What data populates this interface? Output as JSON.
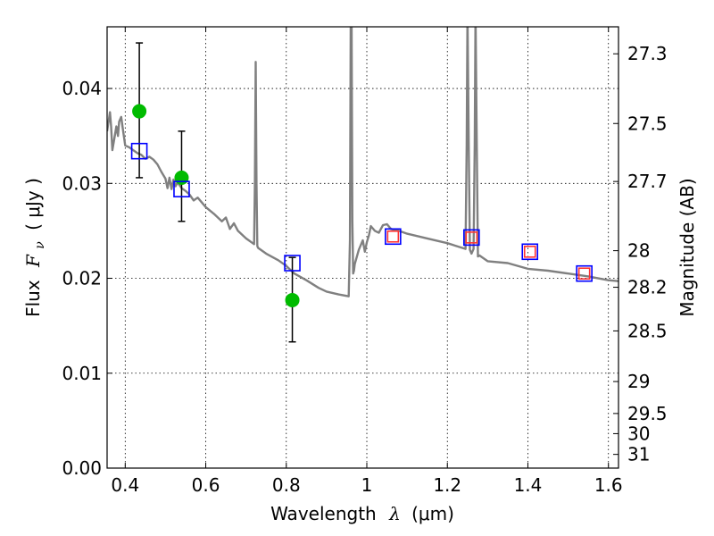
{
  "chart_data": {
    "type": "scatter",
    "xlabel_main": "Wavelength",
    "xlabel_lambda": "λ",
    "xlabel_unit": "(μm)",
    "ylabel_main": "Flux",
    "ylabel_symbol": "F",
    "ylabel_subscript": "ν",
    "ylabel_unit": "( μJy )",
    "y2label": "Magnitude (AB)",
    "xlim": [
      0.355,
      1.625
    ],
    "ylim": [
      0.0,
      0.0465
    ],
    "grid": true,
    "x_ticks": [
      {
        "value": 0.4,
        "label": "0.4"
      },
      {
        "value": 0.6,
        "label": "0.6"
      },
      {
        "value": 0.8,
        "label": "0.8"
      },
      {
        "value": 1.0,
        "label": "1"
      },
      {
        "value": 1.2,
        "label": "1.2"
      },
      {
        "value": 1.4,
        "label": "1.4"
      },
      {
        "value": 1.6,
        "label": "1.6"
      }
    ],
    "y_ticks": [
      {
        "value": 0.0,
        "label": "0.00"
      },
      {
        "value": 0.01,
        "label": "0.01"
      },
      {
        "value": 0.02,
        "label": "0.02"
      },
      {
        "value": 0.03,
        "label": "0.03"
      },
      {
        "value": 0.04,
        "label": "0.04"
      }
    ],
    "y2_ticks": [
      {
        "mag": 27.3,
        "label": "27.3"
      },
      {
        "mag": 27.5,
        "label": "27.5"
      },
      {
        "mag": 27.7,
        "label": "27.7"
      },
      {
        "mag": 28.0,
        "label": "28"
      },
      {
        "mag": 28.2,
        "label": "28.2"
      },
      {
        "mag": 28.5,
        "label": "28.5"
      },
      {
        "mag": 29.0,
        "label": "29"
      },
      {
        "mag": 29.5,
        "label": "29.5"
      },
      {
        "mag": 30.0,
        "label": "30"
      },
      {
        "mag": 31.0,
        "label": "31"
      }
    ],
    "series": [
      {
        "name": "model-spectrum",
        "kind": "line",
        "color": "#808080",
        "x": [
          0.355,
          0.362,
          0.365,
          0.368,
          0.372,
          0.378,
          0.382,
          0.385,
          0.39,
          0.395,
          0.4,
          0.41,
          0.42,
          0.43,
          0.44,
          0.45,
          0.46,
          0.47,
          0.48,
          0.49,
          0.5,
          0.505,
          0.51,
          0.515,
          0.52,
          0.525,
          0.53,
          0.54,
          0.55,
          0.56,
          0.57,
          0.58,
          0.6,
          0.62,
          0.64,
          0.65,
          0.66,
          0.67,
          0.68,
          0.7,
          0.72,
          0.722,
          0.724,
          0.726,
          0.728,
          0.73,
          0.75,
          0.78,
          0.8,
          0.82,
          0.85,
          0.88,
          0.9,
          0.93,
          0.955,
          0.958,
          0.96,
          0.962,
          0.964,
          0.966,
          0.968,
          0.97,
          0.98,
          0.99,
          0.995,
          1.0,
          1.005,
          1.01,
          1.02,
          1.03,
          1.04,
          1.05,
          1.06,
          1.08,
          1.1,
          1.15,
          1.2,
          1.23,
          1.245,
          1.248,
          1.25,
          1.253,
          1.256,
          1.26,
          1.265,
          1.268,
          1.27,
          1.273,
          1.276,
          1.28,
          1.3,
          1.35,
          1.4,
          1.45,
          1.5,
          1.55,
          1.6,
          1.625
        ],
        "y": [
          0.0355,
          0.0375,
          0.036,
          0.0335,
          0.0345,
          0.036,
          0.035,
          0.0365,
          0.037,
          0.0355,
          0.034,
          0.0338,
          0.0335,
          0.0332,
          0.033,
          0.0326,
          0.0328,
          0.0325,
          0.032,
          0.0312,
          0.0305,
          0.0295,
          0.0306,
          0.0294,
          0.0304,
          0.0297,
          0.0301,
          0.0295,
          0.0292,
          0.0288,
          0.0282,
          0.0285,
          0.0275,
          0.0268,
          0.026,
          0.0264,
          0.0252,
          0.0258,
          0.025,
          0.0242,
          0.0236,
          0.03,
          0.0428,
          0.03,
          0.0234,
          0.0232,
          0.0226,
          0.0219,
          0.0213,
          0.0205,
          0.0198,
          0.019,
          0.0186,
          0.0183,
          0.0181,
          0.024,
          0.048,
          0.048,
          0.026,
          0.0205,
          0.0208,
          0.0215,
          0.023,
          0.024,
          0.0228,
          0.0238,
          0.0245,
          0.0255,
          0.025,
          0.0248,
          0.0256,
          0.0257,
          0.0252,
          0.025,
          0.0247,
          0.0242,
          0.0237,
          0.0233,
          0.0231,
          0.034,
          0.048,
          0.034,
          0.023,
          0.0226,
          0.0231,
          0.034,
          0.048,
          0.034,
          0.0223,
          0.0224,
          0.0218,
          0.0216,
          0.021,
          0.0208,
          0.0205,
          0.0202,
          0.0198,
          0.0197
        ]
      },
      {
        "name": "observed-photometry",
        "kind": "points-with-errors",
        "color": "#00bb00",
        "x": [
          0.435,
          0.54,
          0.815
        ],
        "y": [
          0.0376,
          0.0306,
          0.0177
        ],
        "yerr_low": [
          0.0306,
          0.026,
          0.0133
        ],
        "yerr_high": [
          0.0448,
          0.0355,
          0.0222
        ]
      },
      {
        "name": "model-photometry",
        "kind": "open-squares",
        "color": "#0000ff",
        "x": [
          0.435,
          0.54,
          0.815,
          1.065,
          1.26,
          1.405,
          1.54
        ],
        "y": [
          0.0334,
          0.0294,
          0.0216,
          0.0244,
          0.0243,
          0.0228,
          0.0205
        ]
      },
      {
        "name": "upper-limit-markers",
        "kind": "open-squares",
        "color": "#ff3333",
        "x": [
          1.065,
          1.26,
          1.405,
          1.54
        ],
        "y": [
          0.0244,
          0.0243,
          0.0228,
          0.0205
        ]
      }
    ]
  }
}
